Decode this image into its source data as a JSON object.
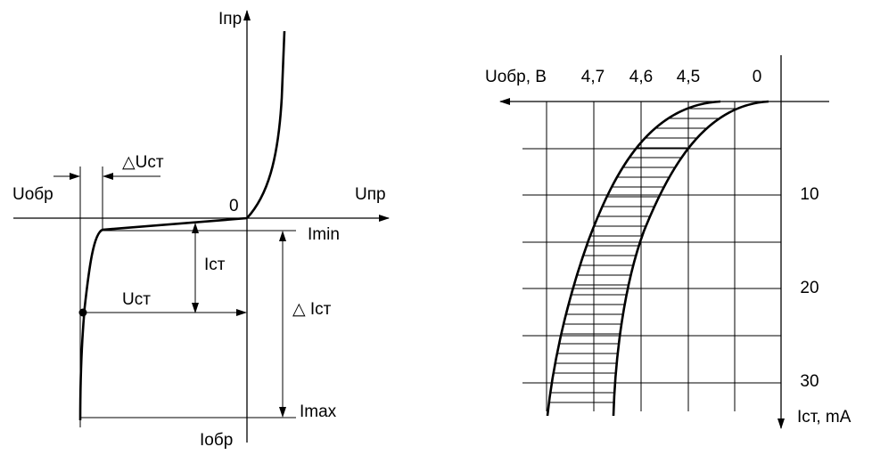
{
  "left": {
    "i_forward": "Iпр",
    "u_forward": "Uпр",
    "u_reverse": "Uобр",
    "origin": "0",
    "i_reverse": "Iобр",
    "delta_u": "△Uст",
    "i_min": "Imin",
    "i_st": "Iст",
    "u_st": "Uст",
    "delta_i": "△ Iст",
    "i_max": "Imax"
  },
  "right": {
    "x_axis_label": "Uобр, В",
    "x_ticks": [
      "4,7",
      "4,6",
      "4,5",
      "0"
    ],
    "y_ticks": [
      "10",
      "20",
      "30"
    ],
    "y_axis_label": "Iст, mA"
  }
}
